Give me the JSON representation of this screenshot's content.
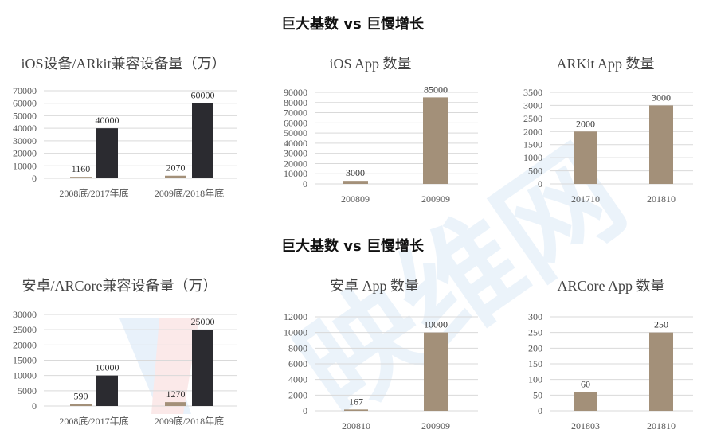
{
  "headers": [
    "巨大基数 vs 巨慢增长",
    "巨大基数 vs 巨慢增长"
  ],
  "watermark": {
    "text": "映维网",
    "colors": [
      "#4a90d9",
      "#e05050"
    ]
  },
  "colors": {
    "primary_bar": "#a39079",
    "secondary_bar": "#2b2b30",
    "grid": "#d9d9d9",
    "text": "#555555"
  },
  "chart_data": [
    {
      "type": "bar",
      "title": "iOS设备/ARkit兼容设备量（万）",
      "categories": [
        "2008底/2017年底",
        "2009底/2018年底"
      ],
      "series": [
        {
          "values": [
            1160,
            2070
          ]
        },
        {
          "values": [
            40000,
            60000
          ]
        }
      ],
      "ylim": [
        0,
        70000
      ],
      "yticks": [
        "0",
        "10000",
        "20000",
        "30000",
        "40000",
        "50000",
        "60000",
        "70000"
      ],
      "grid": true
    },
    {
      "type": "bar",
      "title": "iOS App 数量",
      "categories": [
        "200809",
        "200909"
      ],
      "series": [
        {
          "values": [
            3000,
            85000
          ]
        }
      ],
      "ylim": [
        0,
        90000
      ],
      "yticks": [
        "0",
        "10000",
        "20000",
        "30000",
        "40000",
        "50000",
        "60000",
        "70000",
        "80000",
        "90000"
      ],
      "grid": true
    },
    {
      "type": "bar",
      "title": "ARKit App 数量",
      "categories": [
        "201710",
        "201810"
      ],
      "series": [
        {
          "values": [
            2000,
            3000
          ]
        }
      ],
      "ylim": [
        0,
        3500
      ],
      "yticks": [
        "0",
        "500",
        "1000",
        "1500",
        "2000",
        "2500",
        "3000",
        "3500"
      ],
      "grid": true
    },
    {
      "type": "bar",
      "title": "安卓/ARCore兼容设备量（万）",
      "categories": [
        "2008底/2017年底",
        "2009底/2018年底"
      ],
      "series": [
        {
          "values": [
            590,
            1270
          ]
        },
        {
          "values": [
            10000,
            25000
          ]
        }
      ],
      "ylim": [
        0,
        30000
      ],
      "yticks": [
        "0",
        "5000",
        "10000",
        "15000",
        "20000",
        "25000",
        "30000"
      ],
      "grid": true
    },
    {
      "type": "bar",
      "title": "安卓 App 数量",
      "categories": [
        "200810",
        "200909"
      ],
      "series": [
        {
          "values": [
            167,
            10000
          ]
        }
      ],
      "ylim": [
        0,
        12000
      ],
      "yticks": [
        "0",
        "2000",
        "4000",
        "6000",
        "8000",
        "10000",
        "12000"
      ],
      "grid": true
    },
    {
      "type": "bar",
      "title": "ARCore App 数量",
      "categories": [
        "201803",
        "201810"
      ],
      "series": [
        {
          "values": [
            60,
            250
          ]
        }
      ],
      "ylim": [
        0,
        300
      ],
      "yticks": [
        "0",
        "50",
        "100",
        "150",
        "200",
        "250",
        "300"
      ],
      "grid": true
    }
  ]
}
